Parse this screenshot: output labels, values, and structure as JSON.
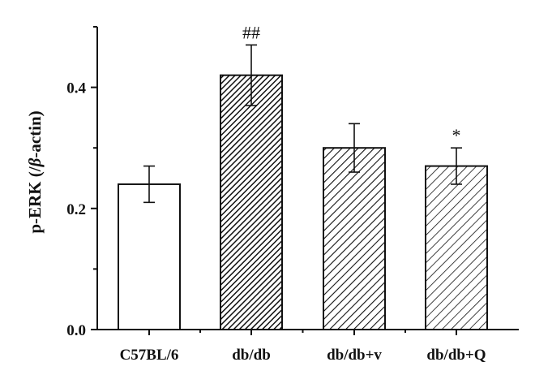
{
  "chart_data": {
    "type": "bar",
    "title": "",
    "xlabel": "",
    "ylabel_parts": [
      "p-ERK (/",
      "β",
      "-actin)"
    ],
    "ylim": [
      0,
      0.5
    ],
    "yticks": [
      {
        "value": 0.0,
        "label": "0.0"
      },
      {
        "value": 0.2,
        "label": "0.2"
      },
      {
        "value": 0.4,
        "label": "0.4"
      }
    ],
    "categories": [
      "C57BL/6",
      "db/db",
      "db/db+v",
      "db/db+Q"
    ],
    "values": [
      0.24,
      0.42,
      0.3,
      0.27
    ],
    "errors": [
      0.03,
      0.05,
      0.04,
      0.03
    ],
    "fills": [
      "none",
      "dense-hatch",
      "hatch",
      "light-hatch"
    ],
    "annotations": [
      "",
      "##",
      "",
      "*"
    ],
    "grid": false,
    "legend": "none"
  }
}
